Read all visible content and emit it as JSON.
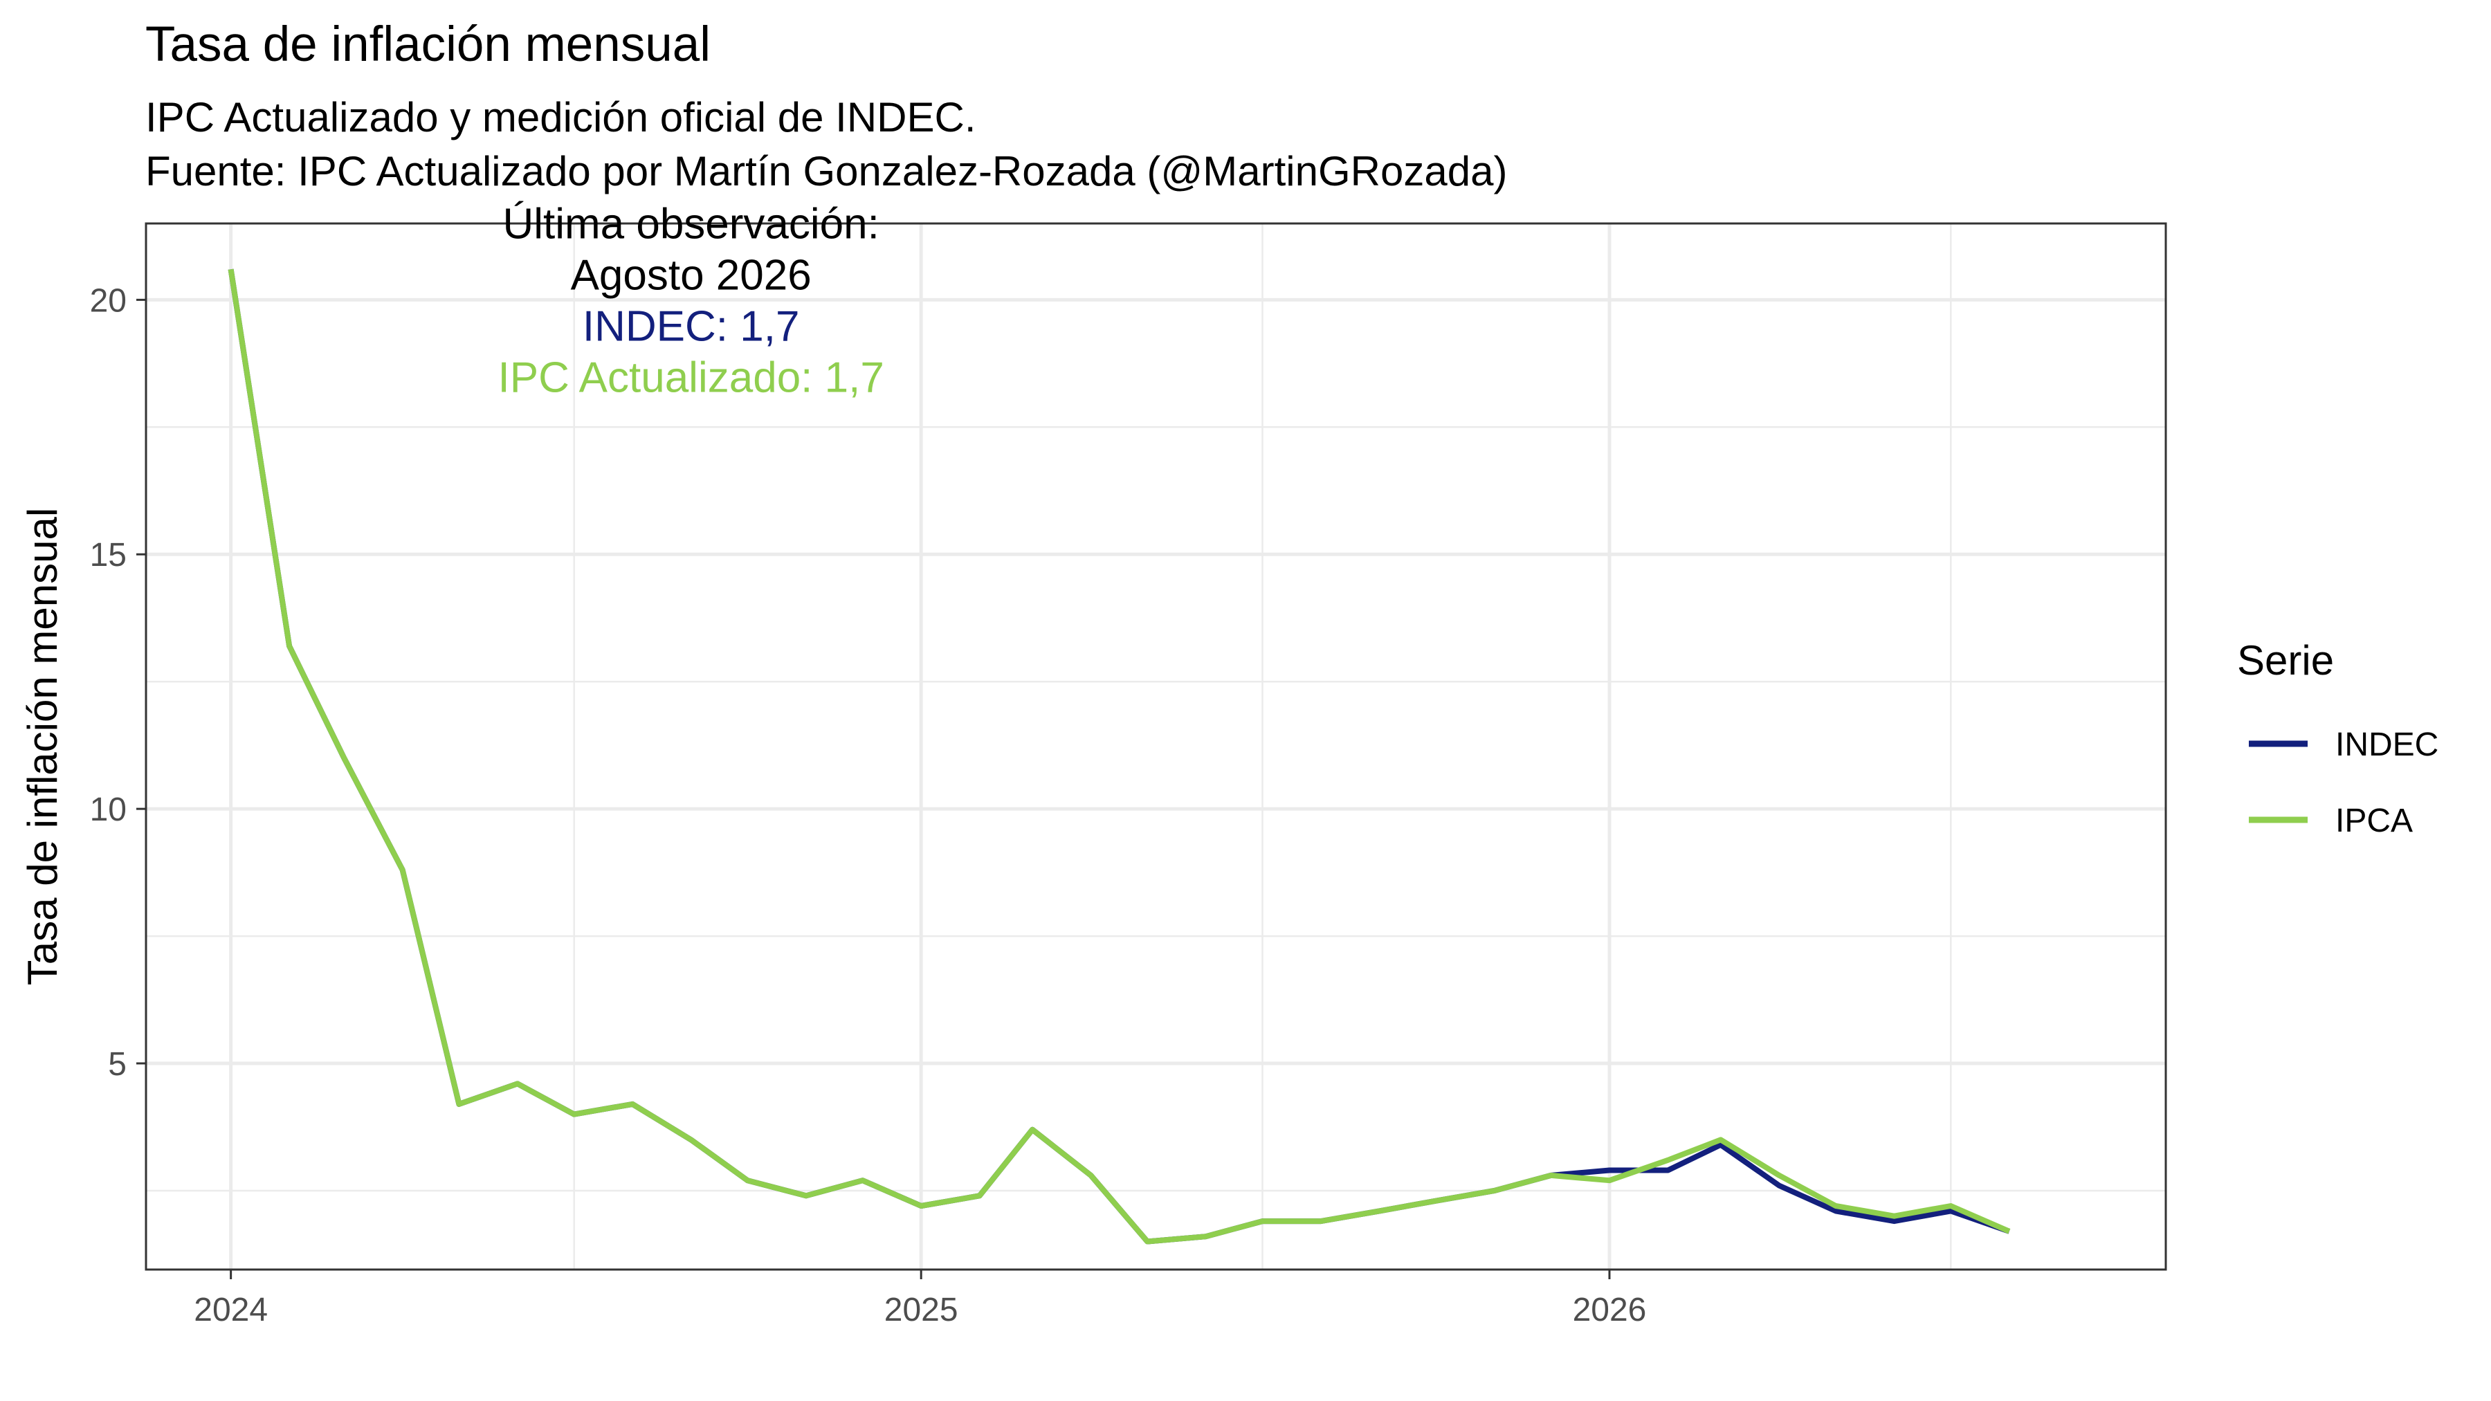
{
  "chart_data": {
    "type": "line",
    "title": "Tasa de inflación mensual",
    "subtitle_lines": [
      "IPC Actualizado y medición oficial de INDEC.",
      "Fuente: IPC Actualizado por Martín Gonzalez-Rozada (@MartinGRozada)"
    ],
    "xlabel": "",
    "ylabel": "Tasa de inflación mensual",
    "x": [
      "2024-01",
      "2024-02",
      "2024-03",
      "2024-04",
      "2024-05",
      "2024-06",
      "2024-07",
      "2024-08",
      "2024-09",
      "2024-10",
      "2024-11",
      "2024-12",
      "2025-01",
      "2025-02",
      "2025-03",
      "2025-04",
      "2025-05",
      "2025-06",
      "2025-07",
      "2025-08",
      "2025-09",
      "2025-10",
      "2025-11",
      "2025-12",
      "2026-01",
      "2026-02",
      "2026-03",
      "2026-04",
      "2026-05",
      "2026-06",
      "2026-07",
      "2026-08"
    ],
    "xlim": [
      "2023-11-17",
      "2026-10-23"
    ],
    "x_ticks": [
      {
        "label": "2024",
        "date": "2024-01-01"
      },
      {
        "label": "2025",
        "date": "2025-01-01"
      },
      {
        "label": "2026",
        "date": "2026-01-01"
      }
    ],
    "x_minor_ticks": [
      "2024-07-01",
      "2025-07-01",
      "2026-07-01"
    ],
    "ylim": [
      0.95,
      21.5
    ],
    "y_ticks": [
      5,
      10,
      15,
      20
    ],
    "y_minor_ticks": [
      2.5,
      7.5,
      12.5,
      17.5
    ],
    "grid": true,
    "series": [
      {
        "name": "INDEC",
        "color": "#13207d",
        "values": [
          20.6,
          13.2,
          11.0,
          8.8,
          4.2,
          4.6,
          4.0,
          4.2,
          3.5,
          2.7,
          2.4,
          2.7,
          2.2,
          2.4,
          3.7,
          2.8,
          1.5,
          1.6,
          1.9,
          1.9,
          2.1,
          2.3,
          2.5,
          2.8,
          2.9,
          2.9,
          3.4,
          2.6,
          2.1,
          1.9,
          2.1,
          1.7
        ]
      },
      {
        "name": "IPCA",
        "color": "#8fce4e",
        "values": [
          20.6,
          13.2,
          11.0,
          8.8,
          4.2,
          4.6,
          4.0,
          4.2,
          3.5,
          2.7,
          2.4,
          2.7,
          2.2,
          2.4,
          3.7,
          2.8,
          1.5,
          1.6,
          1.9,
          1.9,
          2.1,
          2.3,
          2.5,
          2.8,
          2.7,
          3.1,
          3.5,
          2.8,
          2.2,
          2.0,
          2.2,
          1.7
        ]
      }
    ],
    "annotation": {
      "lines": [
        {
          "text": "Última observación:",
          "color": "#000000"
        },
        {
          "text": "Agosto 2026",
          "color": "#000000"
        },
        {
          "text": "INDEC:  1,7",
          "color": "#13207d"
        },
        {
          "text": "IPC Actualizado:  1,7",
          "color": "#8fce4e"
        }
      ],
      "anchor_date": "2024-09-01",
      "anchor_y": 20.0
    },
    "legend": {
      "title": "Serie",
      "position": "right",
      "items": [
        "INDEC",
        "IPCA"
      ]
    }
  }
}
